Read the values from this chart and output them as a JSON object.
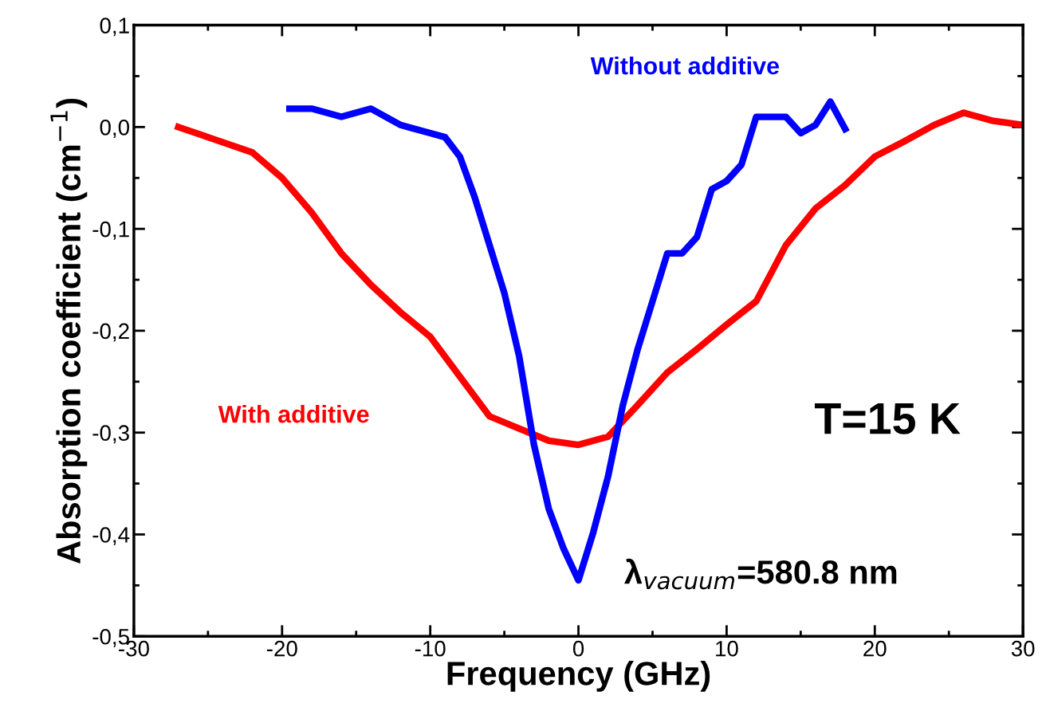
{
  "chart_data": {
    "type": "line",
    "xlabel": "Frequency (GHz)",
    "ylabel": "Absorption coefficient (cm$^{−1}$)",
    "xlim": [
      -30,
      30
    ],
    "xticks": [
      -30,
      -20,
      -10,
      0,
      10,
      20,
      30
    ],
    "ylim": [
      -0.5,
      0.1
    ],
    "yticks": [
      {
        "value": -0.5,
        "label": "-0,5"
      },
      {
        "value": -0.4,
        "label": "-0,4"
      },
      {
        "value": -0.3,
        "label": "-0,3"
      },
      {
        "value": -0.2,
        "label": "-0,2"
      },
      {
        "value": -0.1,
        "label": "-0,1"
      },
      {
        "value": 0.0,
        "label": "0,0"
      },
      {
        "value": 0.1,
        "label": "0,1"
      }
    ],
    "grid": false,
    "legend": false,
    "annotations": [
      "T=15 K",
      "λ$_{vacuum}$=580.8 nm"
    ],
    "series": [
      {
        "name": "With additive",
        "color": "#ff0000",
        "x": [
          -27,
          -25,
          -22,
          -20,
          -18,
          -16,
          -14,
          -12,
          -10,
          -8,
          -6,
          -4,
          -2,
          0,
          2,
          4,
          6,
          8,
          10,
          12,
          14,
          16,
          18,
          20,
          22,
          24,
          26,
          28,
          30
        ],
        "values": [
          0.0,
          -0.01,
          -0.025,
          -0.05,
          -0.084,
          -0.124,
          -0.155,
          -0.182,
          -0.206,
          -0.245,
          -0.284,
          -0.296,
          -0.308,
          -0.312,
          -0.304,
          -0.273,
          -0.241,
          -0.218,
          -0.194,
          -0.171,
          -0.116,
          -0.08,
          -0.057,
          -0.029,
          -0.014,
          0.002,
          0.014,
          0.006,
          0.002
        ]
      },
      {
        "name": "Without additive",
        "color": "#0000ff",
        "x": [
          -19.5,
          -18,
          -16,
          -14,
          -12,
          -10,
          -9,
          -8,
          -7,
          -6,
          -5,
          -4,
          -3,
          -2,
          -1,
          0,
          1,
          2,
          3,
          4,
          5,
          6,
          7,
          8,
          9,
          10,
          11,
          12,
          14,
          15,
          16,
          17,
          18
        ],
        "values": [
          0.018,
          0.018,
          0.01,
          0.018,
          0.002,
          -0.006,
          -0.01,
          -0.029,
          -0.069,
          -0.116,
          -0.163,
          -0.225,
          -0.312,
          -0.375,
          -0.414,
          -0.445,
          -0.398,
          -0.343,
          -0.273,
          -0.218,
          -0.171,
          -0.124,
          -0.124,
          -0.108,
          -0.061,
          -0.053,
          -0.037,
          0.01,
          0.01,
          -0.006,
          0.002,
          0.025,
          -0.002
        ]
      }
    ]
  }
}
